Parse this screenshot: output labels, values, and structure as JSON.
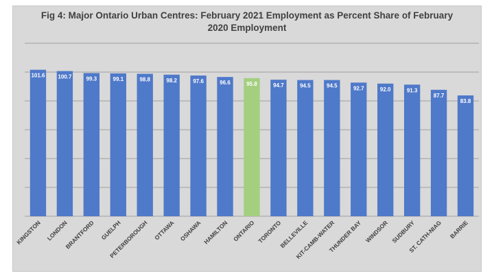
{
  "chart_data": {
    "type": "bar",
    "title_line1": "Fig 4: Major Ontario Urban Centres: February 2021 Employment as Percent Share of February",
    "title_line2": "2020 Employment",
    "categories": [
      "KINGSTON",
      "LONDON",
      "BRANTFORD",
      "GUELPH",
      "PETERBOROUGH",
      "OTTAWA",
      "OSHAWA",
      "HAMILTON",
      "ONTARIO",
      "TORONTO",
      "BELLEVILLE",
      "KIT-CAMB-WATER",
      "THUNDER BAY",
      "WINDSOR",
      "SUDBURY",
      "ST. CATH-NIAG",
      "BARRIE"
    ],
    "values": [
      101.6,
      100.7,
      99.3,
      99.1,
      98.8,
      98.2,
      97.6,
      96.6,
      95.8,
      94.7,
      94.5,
      94.5,
      92.7,
      92.0,
      91.3,
      87.7,
      83.8
    ],
    "value_labels": [
      "101.6",
      "100.7",
      "99.3",
      "99.1",
      "98.8",
      "98.2",
      "97.6",
      "96.6",
      "95.8",
      "94.7",
      "94.5",
      "94.5",
      "92.7",
      "92.0",
      "91.3",
      "87.7",
      "83.8"
    ],
    "ylim": [
      0,
      120
    ],
    "grid": true,
    "bar_color": "#4f79c9",
    "highlight_category": "ONTARIO",
    "highlight_color": "#a3cf7f",
    "background_color": "#d9d9d9"
  }
}
